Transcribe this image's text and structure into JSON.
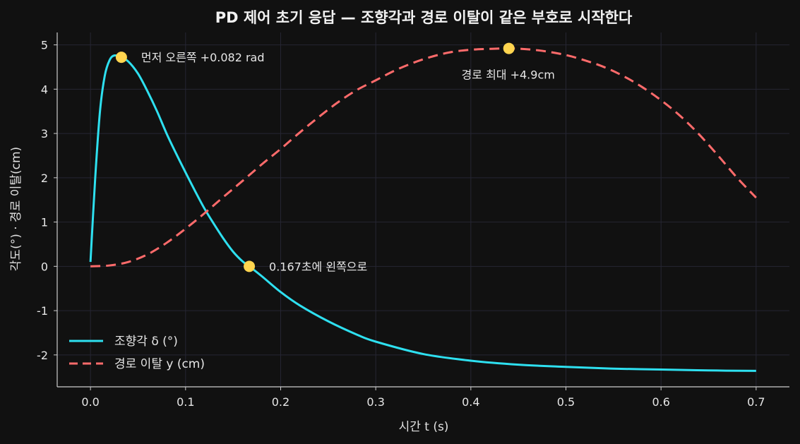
{
  "chart_data": {
    "type": "line",
    "title": "PD 제어 초기 응답 — 조향각과 경로 이탈이 같은 부호로 시작한다",
    "xlabel": "시간 t (s)",
    "ylabel": "각도(°) · 경로 이탈(cm)",
    "xlim": [
      -0.035,
      0.735
    ],
    "ylim": [
      -2.72,
      5.28
    ],
    "xticks": [
      0.0,
      0.1,
      0.2,
      0.3,
      0.4,
      0.5,
      0.6,
      0.7
    ],
    "xtick_labels": [
      "0.0",
      "0.1",
      "0.2",
      "0.3",
      "0.4",
      "0.5",
      "0.6",
      "0.7"
    ],
    "yticks": [
      -2,
      -1,
      0,
      1,
      2,
      3,
      4,
      5
    ],
    "ytick_labels": [
      "-2",
      "-1",
      "0",
      "1",
      "2",
      "3",
      "4",
      "5"
    ],
    "grid": true,
    "legend_position": "lower-left",
    "series": [
      {
        "name": "조향각 δ (°)",
        "color": "#2ee0f0",
        "style": "solid",
        "x": [
          0.0,
          0.005,
          0.01,
          0.015,
          0.02,
          0.025,
          0.0325,
          0.04,
          0.05,
          0.06,
          0.07,
          0.08,
          0.09,
          0.1,
          0.11,
          0.12,
          0.13,
          0.14,
          0.15,
          0.16,
          0.167,
          0.18,
          0.2,
          0.22,
          0.25,
          0.28,
          0.3,
          0.35,
          0.4,
          0.45,
          0.5,
          0.55,
          0.6,
          0.65,
          0.7
        ],
        "y": [
          0.1,
          2.0,
          3.5,
          4.3,
          4.65,
          4.76,
          4.72,
          4.62,
          4.35,
          3.95,
          3.5,
          3.0,
          2.55,
          2.12,
          1.7,
          1.3,
          0.95,
          0.62,
          0.33,
          0.11,
          0.0,
          -0.22,
          -0.58,
          -0.88,
          -1.24,
          -1.54,
          -1.7,
          -1.98,
          -2.13,
          -2.22,
          -2.27,
          -2.31,
          -2.33,
          -2.35,
          -2.36
        ]
      },
      {
        "name": "경로 이탈 y (cm)",
        "color": "#ff6b6b",
        "style": "dashed",
        "x": [
          0.0,
          0.02,
          0.04,
          0.06,
          0.08,
          0.1,
          0.12,
          0.14,
          0.16,
          0.18,
          0.2,
          0.22,
          0.24,
          0.26,
          0.28,
          0.3,
          0.32,
          0.34,
          0.36,
          0.38,
          0.4,
          0.42,
          0.44,
          0.46,
          0.48,
          0.5,
          0.52,
          0.54,
          0.56,
          0.58,
          0.6,
          0.62,
          0.64,
          0.66,
          0.68,
          0.7
        ],
        "y": [
          0.0,
          0.02,
          0.1,
          0.27,
          0.53,
          0.85,
          1.2,
          1.57,
          1.93,
          2.3,
          2.65,
          3.02,
          3.37,
          3.7,
          3.98,
          4.2,
          4.42,
          4.6,
          4.74,
          4.84,
          4.89,
          4.91,
          4.92,
          4.9,
          4.85,
          4.77,
          4.65,
          4.5,
          4.3,
          4.05,
          3.75,
          3.4,
          2.98,
          2.5,
          2.0,
          1.55
        ]
      }
    ],
    "markers": [
      {
        "x": 0.0325,
        "y": 4.72,
        "label": "먼저 오른쪽 +0.082 rad",
        "label_anchor": "right"
      },
      {
        "x": 0.167,
        "y": 0.0,
        "label": "0.167초에 왼쪽으로",
        "label_anchor": "right"
      },
      {
        "x": 0.44,
        "y": 4.92,
        "label": "경로 최대 +4.9cm",
        "label_anchor": "below"
      }
    ],
    "marker_color": "#ffd54f"
  }
}
